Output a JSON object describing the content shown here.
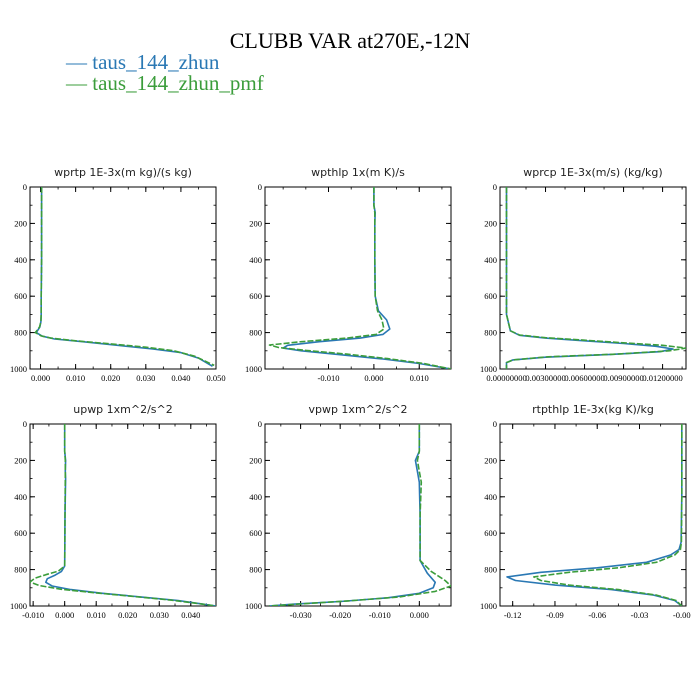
{
  "title": "CLUBB VAR at270E,-12N",
  "legend": [
    {
      "name": "taus_144_zhun",
      "color": "#2a78b4"
    },
    {
      "name": "taus_144_zhun_pmf",
      "color": "#3b9d3b"
    }
  ],
  "chart_data": [
    {
      "type": "line",
      "title": "wprtp   1E-3x(m kg)/(s kg)",
      "xlim": [
        -0.003,
        0.05
      ],
      "ylim": [
        1000,
        0
      ],
      "xticks": [
        0.0,
        0.01,
        0.02,
        0.03,
        0.04,
        0.05
      ],
      "xtick_labels": [
        "0.000",
        "0.010",
        "0.020",
        "0.030",
        "0.040",
        "0.050"
      ],
      "yticks": [
        0,
        200,
        400,
        600,
        800,
        1000
      ],
      "ytick_labels": [
        "0",
        "200",
        "400",
        "600",
        "800",
        "1000"
      ],
      "series": [
        {
          "name": "taus_144_zhun",
          "x": [
            0.0003,
            0.0003,
            0.0003,
            0.0002,
            0.0002,
            0.0001,
            -0.0002,
            -0.0012,
            0.0005,
            0.004,
            0.012,
            0.022,
            0.032,
            0.04,
            0.045,
            0.049
          ],
          "y": [
            0,
            200,
            400,
            600,
            700,
            740,
            770,
            800,
            820,
            835,
            850,
            870,
            890,
            910,
            940,
            985
          ]
        },
        {
          "name": "taus_144_zhun_pmf",
          "x": [
            0.0003,
            0.0003,
            0.0003,
            0.0002,
            0.0002,
            0.0001,
            -0.0003,
            -0.0015,
            0.0002,
            0.003,
            0.01,
            0.02,
            0.03,
            0.038,
            0.044,
            0.0495
          ],
          "y": [
            0,
            200,
            400,
            600,
            700,
            740,
            770,
            800,
            818,
            830,
            845,
            862,
            880,
            900,
            930,
            980
          ]
        }
      ]
    },
    {
      "type": "line",
      "title": "wpthlp   1x(m K)/s",
      "xlim": [
        -0.024,
        0.017
      ],
      "ylim": [
        1000,
        0
      ],
      "xticks": [
        -0.01,
        0.0,
        0.01
      ],
      "xtick_labels": [
        "-0.010",
        "0.000",
        "0.010"
      ],
      "yticks": [
        0,
        200,
        400,
        600,
        800,
        1000
      ],
      "ytick_labels": [
        "0",
        "200",
        "400",
        "600",
        "800",
        "1000"
      ],
      "series": [
        {
          "name": "taus_144_zhun",
          "x": [
            0.0,
            0.0,
            0.0003,
            0.0002,
            0.0002,
            0.0003,
            0.001,
            0.0028,
            0.0035,
            0.002,
            -0.003,
            -0.012,
            -0.019,
            -0.02,
            -0.016,
            -0.008,
            0.002,
            0.01,
            0.017
          ],
          "y": [
            0,
            100,
            140,
            200,
            400,
            600,
            680,
            730,
            780,
            810,
            830,
            850,
            870,
            885,
            900,
            920,
            945,
            970,
            1000
          ]
        },
        {
          "name": "taus_144_zhun_pmf",
          "x": [
            0.0,
            0.0,
            0.0002,
            0.0002,
            0.0002,
            0.0003,
            0.0008,
            0.0018,
            0.0022,
            0.0005,
            -0.006,
            -0.016,
            -0.023,
            -0.021,
            -0.015,
            -0.006,
            0.003,
            0.011,
            0.017
          ],
          "y": [
            0,
            100,
            140,
            200,
            400,
            600,
            680,
            730,
            780,
            810,
            830,
            850,
            868,
            882,
            898,
            918,
            943,
            970,
            1000
          ]
        }
      ]
    },
    {
      "type": "line",
      "title": "wprcp   1E-3x(m/s) (kg/kg)",
      "xlim": [
        -0.0005,
        0.0138
      ],
      "ylim": [
        1000,
        0
      ],
      "xticks": [
        0.0,
        0.003,
        0.006,
        0.009,
        0.012
      ],
      "xtick_labels": [
        "0.00000000",
        "0.00300000",
        "0.00600000",
        "0.00900000",
        "0.01200000"
      ],
      "yticks": [
        0,
        200,
        400,
        600,
        800,
        1000
      ],
      "ytick_labels": [
        "0",
        "200",
        "400",
        "600",
        "800",
        "1000"
      ],
      "series": [
        {
          "name": "taus_144_zhun",
          "x": [
            0.0,
            0.0,
            0.0,
            0.0,
            0.0003,
            0.001,
            0.003,
            0.006,
            0.009,
            0.0115,
            0.0128,
            0.0118,
            0.008,
            0.003,
            0.0005,
            0.0,
            0.0
          ],
          "y": [
            0,
            200,
            400,
            700,
            790,
            815,
            830,
            845,
            860,
            875,
            890,
            905,
            920,
            935,
            950,
            965,
            1000
          ]
        },
        {
          "name": "taus_144_zhun_pmf",
          "x": [
            0.0,
            0.0,
            0.0,
            0.0,
            0.0003,
            0.001,
            0.003,
            0.006,
            0.009,
            0.012,
            0.0138,
            0.0125,
            0.0085,
            0.0032,
            0.0005,
            0.0,
            0.0
          ],
          "y": [
            0,
            200,
            400,
            700,
            790,
            813,
            828,
            842,
            856,
            870,
            885,
            900,
            918,
            933,
            950,
            965,
            1000
          ]
        }
      ]
    },
    {
      "type": "line",
      "title": "upwp   1xm^2/s^2",
      "xlim": [
        -0.011,
        0.048
      ],
      "ylim": [
        1000,
        0
      ],
      "xticks": [
        -0.01,
        0.0,
        0.01,
        0.02,
        0.03,
        0.04
      ],
      "xtick_labels": [
        "-0.010",
        "0.000",
        "0.010",
        "0.020",
        "0.030",
        "0.040"
      ],
      "yticks": [
        0,
        200,
        400,
        600,
        800,
        1000
      ],
      "ytick_labels": [
        "0",
        "200",
        "400",
        "600",
        "800",
        "1000"
      ],
      "series": [
        {
          "name": "taus_144_zhun",
          "x": [
            0.0,
            0.0,
            0.0003,
            0.0002,
            0.0003,
            0.0001,
            0.0,
            -0.001,
            -0.003,
            -0.0055,
            -0.006,
            -0.004,
            0.002,
            0.012,
            0.024,
            0.036,
            0.044,
            0.048
          ],
          "y": [
            0,
            150,
            200,
            260,
            300,
            500,
            780,
            810,
            830,
            850,
            870,
            890,
            910,
            930,
            950,
            970,
            990,
            1000
          ]
        },
        {
          "name": "taus_144_zhun_pmf",
          "x": [
            0.0,
            0.0,
            0.0002,
            0.0002,
            0.0002,
            0.0001,
            0.0,
            -0.002,
            -0.006,
            -0.0095,
            -0.011,
            -0.008,
            -0.001,
            0.01,
            0.022,
            0.034,
            0.043,
            0.048
          ],
          "y": [
            0,
            150,
            200,
            260,
            300,
            500,
            780,
            808,
            828,
            848,
            868,
            888,
            908,
            928,
            948,
            968,
            988,
            1000
          ]
        }
      ]
    },
    {
      "type": "line",
      "title": "vpwp   1xm^2/s^2",
      "xlim": [
        -0.039,
        0.008
      ],
      "ylim": [
        1000,
        0
      ],
      "xticks": [
        -0.03,
        -0.02,
        -0.01,
        0.0
      ],
      "xtick_labels": [
        "-0.030",
        "-0.020",
        "-0.010",
        "0.000"
      ],
      "yticks": [
        0,
        200,
        400,
        600,
        800,
        1000
      ],
      "ytick_labels": [
        "0",
        "200",
        "400",
        "600",
        "800",
        "1000"
      ],
      "series": [
        {
          "name": "taus_144_zhun",
          "x": [
            0.0,
            0.0,
            -0.001,
            -0.0005,
            0.0,
            0.0002,
            0.0002,
            0.002,
            0.004,
            0.0035,
            0.0,
            -0.008,
            -0.02,
            -0.032,
            -0.038
          ],
          "y": [
            0,
            150,
            200,
            260,
            320,
            500,
            750,
            820,
            870,
            900,
            930,
            955,
            975,
            990,
            1000
          ]
        },
        {
          "name": "taus_144_zhun_pmf",
          "x": [
            0.0,
            0.0,
            -0.0005,
            0.0,
            0.0005,
            0.0002,
            0.0002,
            0.003,
            0.0065,
            0.008,
            0.004,
            -0.005,
            -0.018,
            -0.031,
            -0.038
          ],
          "y": [
            0,
            150,
            200,
            260,
            320,
            500,
            750,
            810,
            860,
            890,
            920,
            950,
            972,
            990,
            1000
          ]
        }
      ]
    },
    {
      "type": "line",
      "title": "rtpthlp   1E-3x(kg K)/kg",
      "xlim": [
        -0.129,
        0.003
      ],
      "ylim": [
        1000,
        0
      ],
      "xticks": [
        -0.12,
        -0.09,
        -0.06,
        -0.03,
        0.0
      ],
      "xtick_labels": [
        "-0.12",
        "-0.09",
        "-0.06",
        "-0.03",
        "-0.00"
      ],
      "yticks": [
        0,
        200,
        400,
        600,
        800,
        1000
      ],
      "ytick_labels": [
        "0",
        "200",
        "400",
        "600",
        "800",
        "1000"
      ],
      "series": [
        {
          "name": "taus_144_zhun",
          "x": [
            0.0,
            0.0,
            -0.0005,
            -0.002,
            -0.008,
            -0.025,
            -0.06,
            -0.1,
            -0.124,
            -0.118,
            -0.09,
            -0.05,
            -0.02,
            -0.005,
            0.0
          ],
          "y": [
            0,
            400,
            650,
            690,
            720,
            760,
            790,
            815,
            840,
            860,
            885,
            910,
            940,
            970,
            1000
          ]
        },
        {
          "name": "taus_144_zhun_pmf",
          "x": [
            0.0,
            0.0,
            -0.0003,
            -0.001,
            -0.005,
            -0.018,
            -0.045,
            -0.08,
            -0.105,
            -0.1,
            -0.08,
            -0.045,
            -0.018,
            -0.004,
            0.0
          ],
          "y": [
            0,
            400,
            650,
            690,
            720,
            760,
            790,
            815,
            840,
            860,
            885,
            910,
            940,
            970,
            1000
          ]
        }
      ]
    }
  ]
}
